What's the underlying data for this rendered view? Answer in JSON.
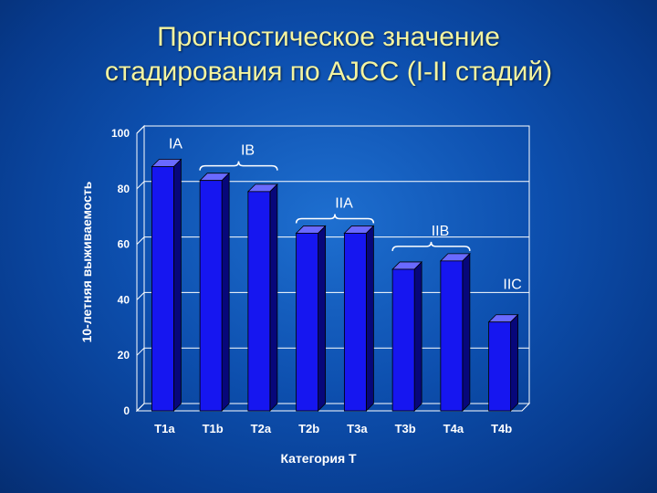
{
  "title_lines": [
    "Прогностическое значение",
    "стадирования по AJCC (I-II стадий)"
  ],
  "chart_data": {
    "type": "bar",
    "title": "Прогностическое значение стадирования по AJCC (I-II стадий)",
    "xlabel": "Категория Т",
    "ylabel": "10-летняя выживаемость",
    "ylim": [
      0,
      100
    ],
    "yticks": [
      0,
      20,
      40,
      60,
      80,
      100
    ],
    "categories": [
      "T1a",
      "T1b",
      "T2a",
      "T2b",
      "T3a",
      "T3b",
      "T4a",
      "T4b"
    ],
    "values": [
      88,
      83,
      79,
      64,
      64,
      51,
      54,
      32
    ],
    "grid": "horizontal",
    "stage_groups": [
      {
        "label": "IA",
        "from": 0,
        "to": 0,
        "bracket": false
      },
      {
        "label": "IB",
        "from": 1,
        "to": 2,
        "bracket": true
      },
      {
        "label": "IIA",
        "from": 3,
        "to": 4,
        "bracket": true
      },
      {
        "label": "IIB",
        "from": 5,
        "to": 6,
        "bracket": true
      },
      {
        "label": "IIC",
        "from": 7,
        "to": 7,
        "bracket": false
      }
    ],
    "colors": {
      "bar_front": "#1616f0",
      "bar_side": "#07077a",
      "bar_top": "#6a6aff",
      "background": "#0d4fae",
      "title": "#f4f4a0"
    }
  }
}
